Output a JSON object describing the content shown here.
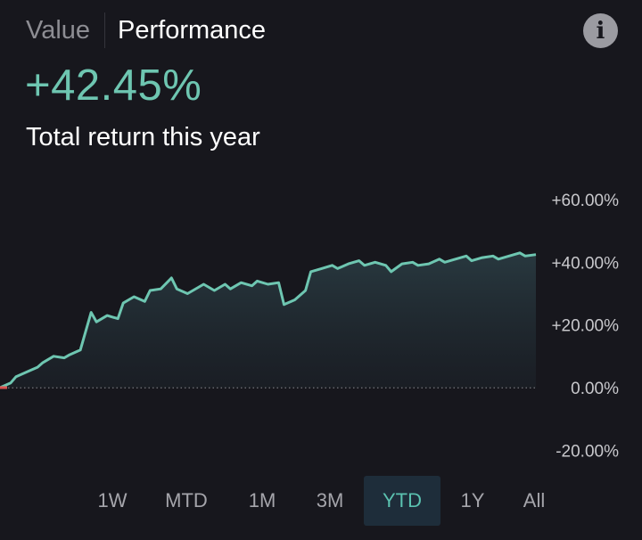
{
  "tabs": [
    {
      "label": "Value",
      "active": false
    },
    {
      "label": "Performance",
      "active": true
    }
  ],
  "info_icon": "info-icon",
  "summary": {
    "return_value": "+42.45%",
    "subtitle": "Total return this year"
  },
  "colors": {
    "accent": "#6ec6b1",
    "background": "#17171d",
    "start_marker": "#d9534f",
    "selected_range_bg": "#1e2d3a"
  },
  "chart_data": {
    "type": "area",
    "ylim": [
      -25,
      65
    ],
    "ytick_labels": [
      "+60.00%",
      "+40.00%",
      "+20.00%",
      "0.00%",
      "-20.00%"
    ],
    "ytick_values": [
      60,
      40,
      20,
      0,
      -20
    ],
    "baseline": 0,
    "x": [
      0,
      2,
      3,
      5,
      7,
      8,
      10,
      12,
      13,
      15,
      17,
      18,
      20,
      22,
      23,
      25,
      27,
      28,
      30,
      32,
      33,
      35,
      37,
      38,
      40,
      42,
      43,
      45,
      47,
      48,
      50,
      52,
      53,
      55,
      57,
      58,
      60,
      62,
      63,
      65,
      67,
      68,
      70,
      72,
      73,
      75,
      77,
      78,
      80,
      82,
      83,
      85,
      87,
      88,
      90,
      92,
      93,
      95,
      97,
      98,
      100
    ],
    "values": [
      0.0,
      1.5,
      3.5,
      5.0,
      6.5,
      8.0,
      10.0,
      9.5,
      10.5,
      12.0,
      24.0,
      21.0,
      23.0,
      22.0,
      27.0,
      29.0,
      27.5,
      31.0,
      31.5,
      35.0,
      31.5,
      30.0,
      32.0,
      33.0,
      31.0,
      33.0,
      31.5,
      33.5,
      32.5,
      34.0,
      33.0,
      33.5,
      26.5,
      28.0,
      31.0,
      37.0,
      38.0,
      39.0,
      38.0,
      39.5,
      40.5,
      39.0,
      40.0,
      39.0,
      37.0,
      39.5,
      40.0,
      39.0,
      39.5,
      41.0,
      40.0,
      41.0,
      42.0,
      40.5,
      41.5,
      42.0,
      41.0,
      42.0,
      43.0,
      42.0,
      42.45
    ]
  },
  "ranges": [
    {
      "label": "1W",
      "selected": false
    },
    {
      "label": "MTD",
      "selected": false
    },
    {
      "label": "1M",
      "selected": false
    },
    {
      "label": "3M",
      "selected": false
    },
    {
      "label": "YTD",
      "selected": true
    },
    {
      "label": "1Y",
      "selected": false
    },
    {
      "label": "All",
      "selected": false
    }
  ]
}
